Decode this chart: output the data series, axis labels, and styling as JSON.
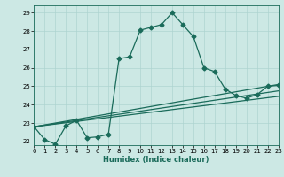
{
  "xlabel": "Humidex (Indice chaleur)",
  "xlim": [
    0,
    23
  ],
  "ylim": [
    21.8,
    29.4
  ],
  "xticks": [
    0,
    1,
    2,
    3,
    4,
    5,
    6,
    7,
    8,
    9,
    10,
    11,
    12,
    13,
    14,
    15,
    16,
    17,
    18,
    19,
    20,
    21,
    22,
    23
  ],
  "yticks": [
    22,
    23,
    24,
    25,
    26,
    27,
    28,
    29
  ],
  "background_color": "#cce8e4",
  "line_color": "#1a6b5a",
  "grid_color": "#aed4d0",
  "main_line_x": [
    0,
    1,
    2,
    3,
    4,
    5,
    6,
    7,
    8,
    9,
    10,
    11,
    12,
    13,
    14,
    15,
    16,
    17,
    18,
    19,
    20,
    21,
    22,
    23
  ],
  "main_line_y": [
    22.8,
    22.1,
    21.85,
    22.85,
    23.15,
    22.2,
    22.25,
    22.4,
    26.5,
    26.6,
    28.05,
    28.2,
    28.35,
    29.0,
    28.35,
    27.7,
    26.0,
    25.8,
    24.85,
    24.5,
    24.35,
    24.55,
    25.0,
    25.05
  ],
  "ref_lines": [
    {
      "x": [
        0,
        23
      ],
      "y": [
        22.8,
        25.1
      ]
    },
    {
      "x": [
        0,
        23
      ],
      "y": [
        22.8,
        24.75
      ]
    },
    {
      "x": [
        0,
        23
      ],
      "y": [
        22.8,
        24.45
      ]
    }
  ],
  "xlabel_fontsize": 6.0,
  "tick_fontsize": 5.0,
  "marker_size": 2.5,
  "line_width": 0.9,
  "fig_width": 3.2,
  "fig_height": 2.0,
  "dpi": 100
}
